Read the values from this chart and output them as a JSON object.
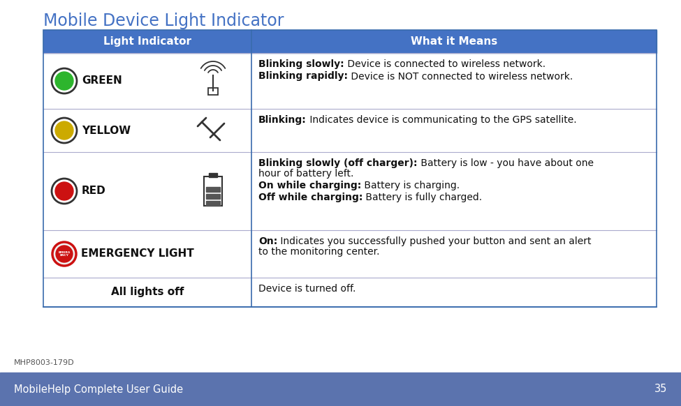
{
  "title": "Mobile Device Light Indicator",
  "title_color": "#4472C4",
  "header_bg": "#4472C4",
  "header_text_color": "#FFFFFF",
  "col1_header": "Light Indicator",
  "col2_header": "What it Means",
  "table_border_color": "#3a6bad",
  "bg_color": "#FFFFFF",
  "footer_bg": "#5b73ae",
  "footer_text": "MobileHelp Complete User Guide",
  "footer_page": "35",
  "footer_text_color": "#FFFFFF",
  "watermark": "MHP8003-179D",
  "rows": [
    {
      "indicator_color": "#2db52d",
      "indicator_label": "GREEN",
      "col2_lines": [
        {
          "bold": "Blinking slowly:",
          "normal": " Device is connected to wireless network."
        },
        {
          "bold": "Blinking rapidly:",
          "normal": " Device is NOT connected to wireless network."
        }
      ]
    },
    {
      "indicator_color": "#ccaa00",
      "indicator_label": "YELLOW",
      "col2_lines": [
        {
          "bold": "Blinking:",
          "normal": " Indicates device is communicating to the GPS satellite."
        }
      ]
    },
    {
      "indicator_color": "#cc1111",
      "indicator_label": "RED",
      "col2_lines": [
        {
          "bold": "Blinking slowly (off charger):",
          "normal": " Battery is low - you have about one hour of battery left."
        },
        {
          "bold": "On while charging:",
          "normal": " Battery is charging."
        },
        {
          "bold": "Off while charging:",
          "normal": " Battery is fully charged."
        }
      ]
    },
    {
      "indicator_color": "#cc1111",
      "indicator_label": "EMERGENCY LIGHT",
      "is_emergency": true,
      "col2_lines": [
        {
          "bold": "On:",
          "normal": " Indicates you successfully pushed your button and sent an alert to the monitoring center."
        }
      ]
    },
    {
      "indicator_color": null,
      "indicator_label": "All lights off",
      "label_bold": true,
      "col2_lines": [
        {
          "bold": "",
          "normal": "Device is turned off."
        }
      ]
    }
  ]
}
